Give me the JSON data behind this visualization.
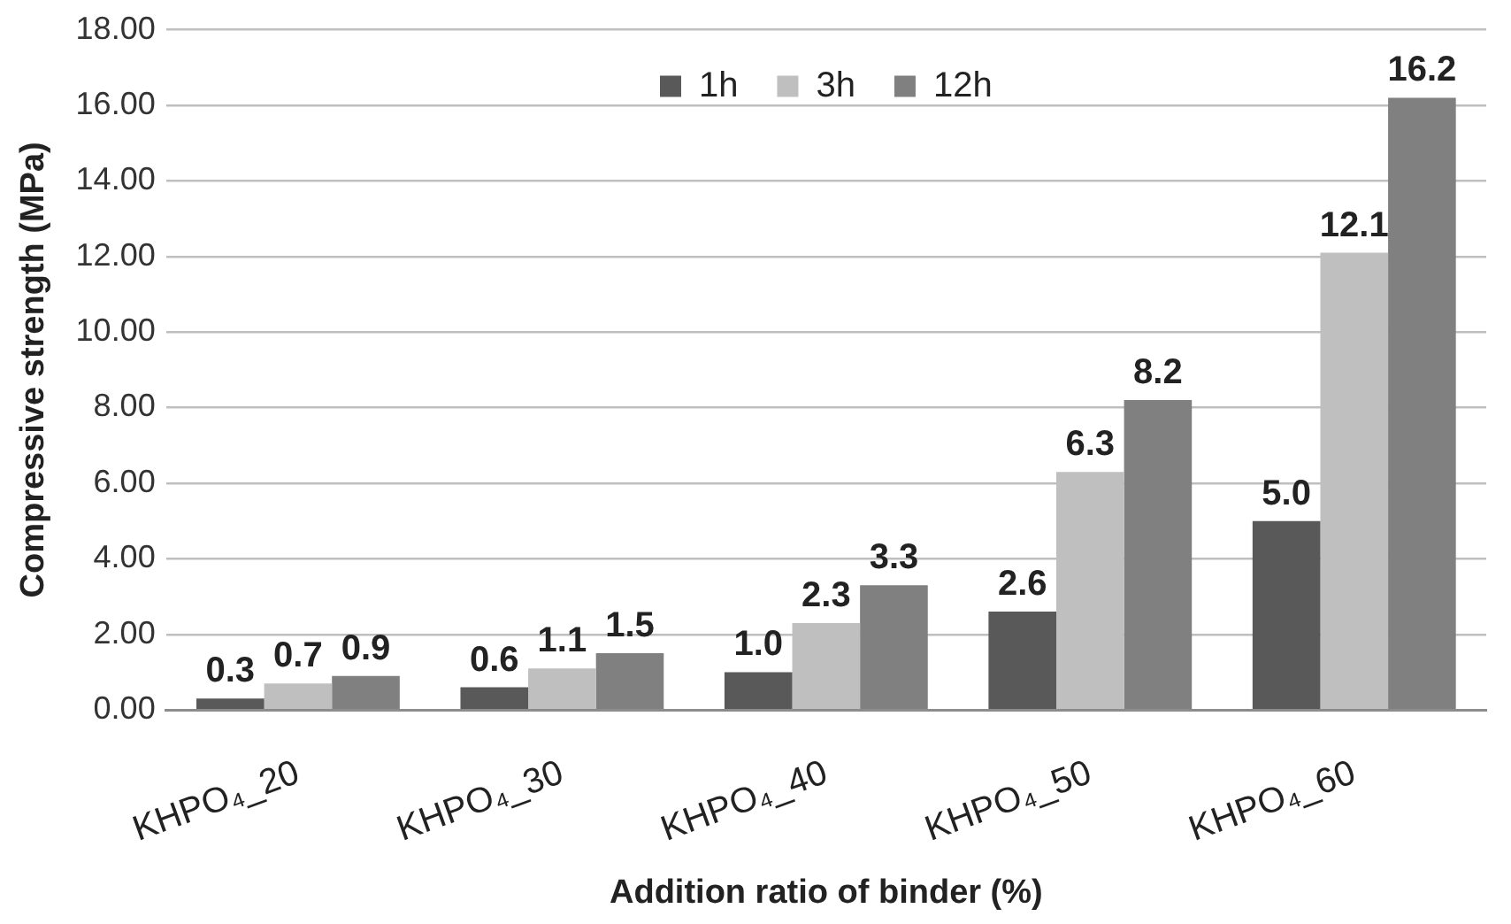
{
  "chart_data": {
    "type": "bar",
    "xlabel": "Addition ratio of binder (%)",
    "ylabel": "Compressive strength (MPa)",
    "categories": [
      "KHPO₄_20",
      "KHPO₄_30",
      "KHPO₄_40",
      "KHPO₄_50",
      "KHPO₄_60"
    ],
    "series": [
      {
        "name": "1h",
        "color": "#595959",
        "values": [
          0.3,
          0.6,
          1.0,
          2.6,
          5.0
        ],
        "value_labels": [
          "0.3",
          "0.6",
          "1.0",
          "2.6",
          "5.0"
        ]
      },
      {
        "name": "3h",
        "color": "#bfbfbf",
        "values": [
          0.7,
          1.1,
          2.3,
          6.3,
          12.1
        ],
        "value_labels": [
          "0.7",
          "1.1",
          "2.3",
          "6.3",
          "12.1"
        ]
      },
      {
        "name": "12h",
        "color": "#808080",
        "values": [
          0.9,
          1.5,
          3.3,
          8.2,
          16.2
        ],
        "value_labels": [
          "0.9",
          "1.5",
          "3.3",
          "8.2",
          "16.2"
        ]
      }
    ],
    "ylim": [
      0,
      18
    ],
    "yticks": [
      {
        "value": 0,
        "label": "0.00"
      },
      {
        "value": 2,
        "label": "2.00"
      },
      {
        "value": 4,
        "label": "4.00"
      },
      {
        "value": 6,
        "label": "6.00"
      },
      {
        "value": 8,
        "label": "8.00"
      },
      {
        "value": 10,
        "label": "10.00"
      },
      {
        "value": 12,
        "label": "12.00"
      },
      {
        "value": 14,
        "label": "14.00"
      },
      {
        "value": 16,
        "label": "16.00"
      },
      {
        "value": 18,
        "label": "18.00"
      }
    ],
    "grid": "y",
    "legend": "top"
  }
}
